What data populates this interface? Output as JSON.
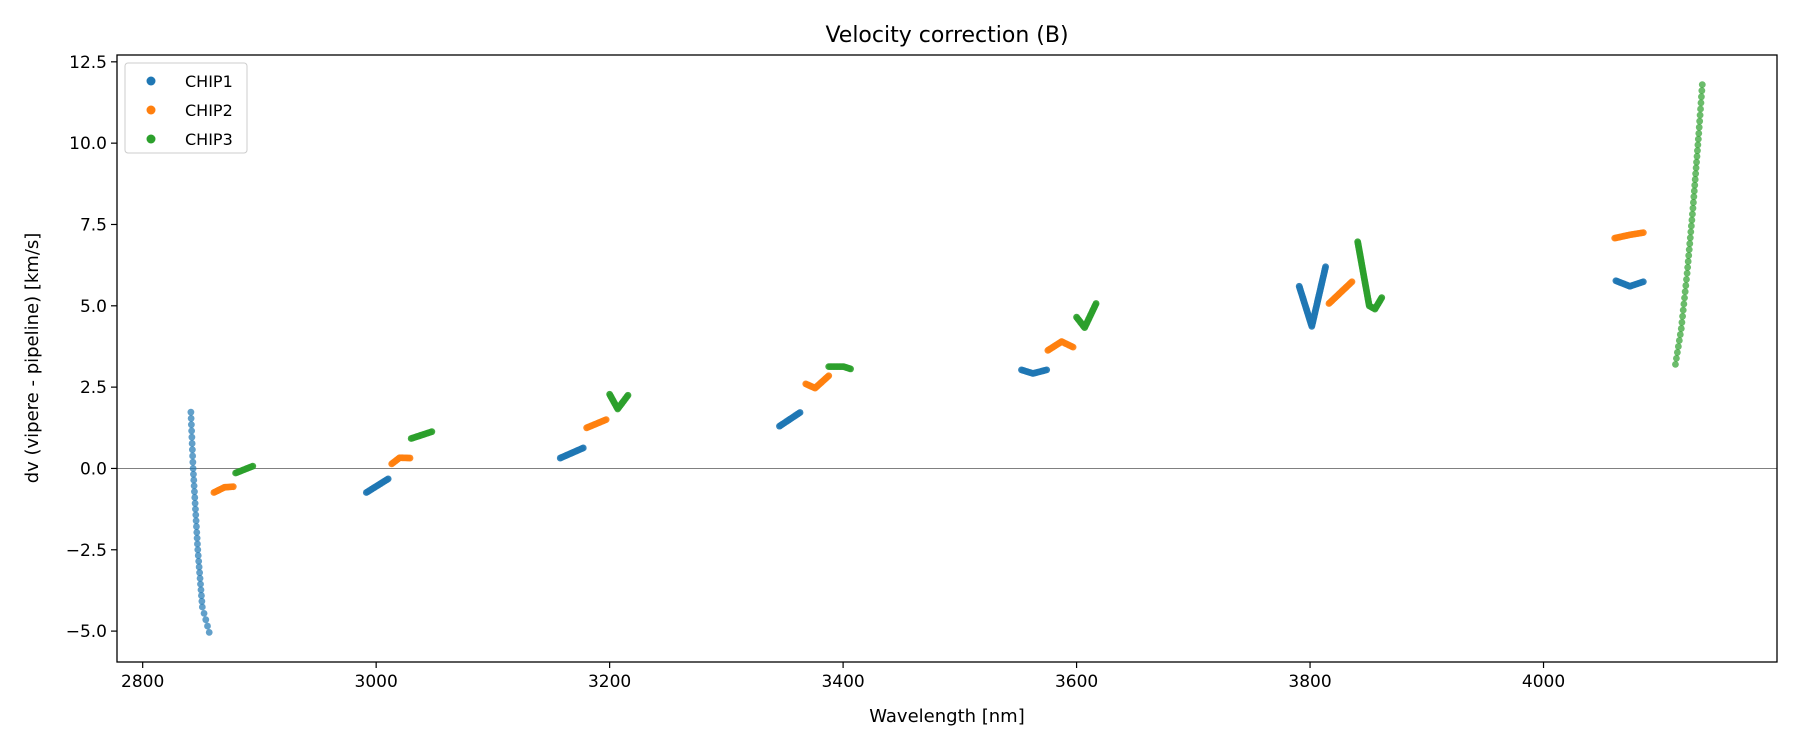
{
  "chart_data": {
    "type": "scatter",
    "title": "Velocity correction (B)",
    "xlabel": "Wavelength [nm]",
    "ylabel": "dv (vipere - pipeline) [km/s]",
    "xlim": [
      2778,
      4200
    ],
    "ylim": [
      -5.95,
      12.71
    ],
    "xticks": [
      2800,
      3000,
      3200,
      3400,
      3600,
      3800,
      4000
    ],
    "yticks": [
      -5.0,
      -2.5,
      0.0,
      2.5,
      5.0,
      7.5,
      10.0,
      12.5
    ],
    "xtick_labels": [
      "2800",
      "3000",
      "3200",
      "3400",
      "3600",
      "3800",
      "4000"
    ],
    "ytick_labels": [
      "−5.0",
      "−2.5",
      "0.0",
      "2.5",
      "5.0",
      "7.5",
      "10.0",
      "12.5"
    ],
    "hline": 0,
    "legend": {
      "placement": "top-left",
      "entries": [
        "CHIP1",
        "CHIP2",
        "CHIP3"
      ]
    },
    "series": [
      {
        "name": "CHIP1",
        "color": "#1f77b4",
        "segments": [
          [
            [
              2841.3,
              1.73
            ],
            [
              2843.2,
              0.0
            ],
            [
              2847.2,
              -2.5
            ],
            [
              2851.1,
              -4.26
            ],
            [
              2857.0,
              -5.04
            ]
          ],
          [
            [
              2991.6,
              -0.74
            ],
            [
              3010.3,
              -0.32
            ]
          ],
          [
            [
              3157.7,
              0.32
            ],
            [
              3177.4,
              0.63
            ]
          ],
          [
            [
              3345.5,
              1.3
            ],
            [
              3363.1,
              1.72
            ]
          ],
          [
            [
              3552.8,
              3.03
            ],
            [
              3562.6,
              2.92
            ],
            [
              3574.4,
              3.03
            ]
          ],
          [
            [
              3790.7,
              5.6
            ],
            [
              3801.5,
              4.37
            ],
            [
              3813.3,
              6.2
            ]
          ],
          [
            [
              4062.0,
              5.77
            ],
            [
              4074.0,
              5.6
            ],
            [
              4085.5,
              5.74
            ]
          ]
        ]
      },
      {
        "name": "CHIP2",
        "color": "#ff7f0e",
        "segments": [
          [
            [
              2861.0,
              -0.74
            ],
            [
              2870.0,
              -0.58
            ],
            [
              2877.6,
              -0.56
            ]
          ],
          [
            [
              3013.3,
              0.14
            ],
            [
              3020.1,
              0.33
            ],
            [
              3029.0,
              0.32
            ]
          ],
          [
            [
              3180.3,
              1.25
            ],
            [
              3197.0,
              1.5
            ]
          ],
          [
            [
              3368.0,
              2.6
            ],
            [
              3376.0,
              2.47
            ],
            [
              3387.7,
              2.85
            ]
          ],
          [
            [
              3575.4,
              3.63
            ],
            [
              3587.2,
              3.9
            ],
            [
              3597.0,
              3.73
            ]
          ],
          [
            [
              3816.2,
              5.07
            ],
            [
              3835.9,
              5.74
            ]
          ],
          [
            [
              4061.0,
              7.08
            ],
            [
              4073.7,
              7.18
            ],
            [
              4085.5,
              7.25
            ]
          ]
        ]
      },
      {
        "name": "CHIP3",
        "color": "#2ca02c",
        "segments": [
          [
            [
              2879.6,
              -0.14
            ],
            [
              2894.3,
              0.07
            ]
          ],
          [
            [
              3030.0,
              0.92
            ],
            [
              3047.7,
              1.13
            ]
          ],
          [
            [
              3200.0,
              2.28
            ],
            [
              3206.9,
              1.83
            ],
            [
              3215.7,
              2.25
            ]
          ],
          [
            [
              3387.7,
              3.13
            ],
            [
              3400.5,
              3.13
            ],
            [
              3406.4,
              3.06
            ]
          ],
          [
            [
              3600.0,
              4.65
            ],
            [
              3606.9,
              4.33
            ],
            [
              3616.7,
              5.07
            ]
          ],
          [
            [
              3840.8,
              6.97
            ],
            [
              3850.7,
              5.0
            ],
            [
              3855.6,
              4.9
            ],
            [
              3861.4,
              5.25
            ]
          ],
          [
            [
              4113.0,
              3.2
            ],
            [
              4118.0,
              4.3
            ],
            [
              4123.0,
              6.0
            ],
            [
              4128.0,
              8.0
            ],
            [
              4133.0,
              10.3
            ],
            [
              4136.0,
              11.8
            ]
          ]
        ]
      }
    ]
  }
}
